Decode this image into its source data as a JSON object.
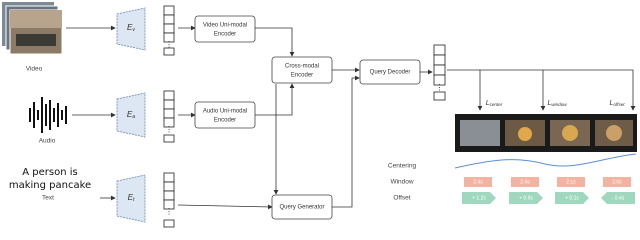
{
  "inputs": {
    "video": {
      "label": "Video"
    },
    "audio": {
      "label": "Audio"
    },
    "text": {
      "label": "Text",
      "sentence": [
        "A person is",
        "making pancake"
      ]
    }
  },
  "encoders": [
    {
      "main": "E",
      "sub": "v"
    },
    {
      "main": "E",
      "sub": "a"
    },
    {
      "main": "E",
      "sub": "t"
    }
  ],
  "nodes": {
    "video_encoder": [
      "Video Uni-modal",
      "Encoder"
    ],
    "audio_encoder": [
      "Audio Uni-modal",
      "Encoder"
    ],
    "cross_encoder": [
      "Cross-modal",
      "Encoder"
    ],
    "query_decoder": "Query Decoder",
    "query_generator": "Query Generator"
  },
  "losses": [
    {
      "main": "L",
      "sub": "center"
    },
    {
      "main": "L",
      "sub": "window"
    },
    {
      "main": "L",
      "sub": "offset"
    }
  ],
  "rows": {
    "centering": "Centering",
    "window": "Window",
    "offset": "Offset"
  },
  "window_labels": [
    "2.4s",
    "2.4s",
    "2.1s",
    "2.0s"
  ],
  "offset_labels": [
    "+ 1.2s",
    "+ 0.9s",
    "+ 0.1s",
    "- 0.4s"
  ]
}
